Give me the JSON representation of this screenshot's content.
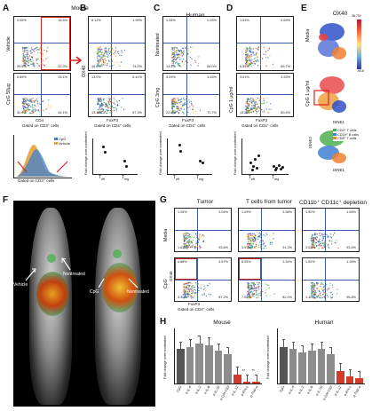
{
  "panels": {
    "A": "A",
    "B": "B",
    "C": "C",
    "D": "D",
    "E": "E",
    "F": "F",
    "G": "G",
    "H": "H"
  },
  "header": {
    "mouse": "Mouse",
    "human": "Human",
    "ox40": "OX40",
    "tumor": "Tumor",
    "t_cells_from_tumor": "T cells from tumor",
    "depletion": "CD11b⁺ CD11c⁺ depletion"
  },
  "rows": {
    "vehicle": "Vehicle",
    "cpg": "CpG 50µg",
    "nontreated": "Nontreated",
    "cpg_3mg": "CpG 3mg",
    "cpg_1ug": "CpG 1 µg/ml",
    "media": "Media",
    "cpg_g": "CpG"
  },
  "axes": {
    "ox40": "OX40",
    "cd4": "CD4",
    "foxp3": "FoxP3",
    "gated_cd3": "Gated on CD3⁺ cells",
    "gated_cd4": "Gated on CD4⁺ cells",
    "fold": "Fold change over nontreated",
    "tsne1": "tSNE1",
    "tsne2": "tSNE2",
    "teff": "T",
    "teff_sub": "eff",
    "treg": "T",
    "treg_sub": "reg"
  },
  "quadrants": {
    "A1": [
      "0.05%",
      "18.6%",
      "39.5%",
      "42.3%"
    ],
    "A2": [
      "0.89%",
      "33.1%",
      "32.6%",
      "44.1%"
    ],
    "B1": [
      "8.12%",
      "1.99%",
      "16.6%",
      "74.0%"
    ],
    "B2": [
      "13.0%",
      "6.41%",
      "13.1%",
      "67.3%"
    ],
    "C1": [
      "1.28%",
      "0.25%",
      "14.3%",
      "84.0%"
    ],
    "C2": [
      "3.29%",
      "3.15%",
      "22.8%",
      "70.7%"
    ],
    "D1": [
      "1.03%",
      "2.69%",
      "6.55%",
      "89.7%"
    ],
    "D2": [
      "3.01%",
      "3.33%",
      "13.2%",
      "80.4%"
    ],
    "G1": [
      "1.26%",
      "3.04%",
      "1.83%",
      "93.8%"
    ],
    "G2": [
      "1.29%",
      "3.36%",
      "3.97%",
      "91.3%"
    ],
    "G3": [
      "1.92%",
      "1.65%",
      "3.02%",
      "93.4%"
    ],
    "G4": [
      "4.88%",
      "4.57%",
      "3.30%",
      "87.2%"
    ],
    "G5": [
      "8.05%",
      "2.34%",
      "7.54%",
      "82.0%"
    ],
    "G6": [
      "1.52%",
      "1.26%",
      "1.40%",
      "95.8%"
    ]
  },
  "legend_a": {
    "cpg": "CpG",
    "vehicle": "Vehicle"
  },
  "legend_e": {
    "cd4": "CD4⁺ T cells",
    "cd19": "CD19⁺ B cells",
    "cd8": "CD8⁺ T cells"
  },
  "tsne_scale": {
    "max": "38,792",
    "mid": "13,923",
    "low": "9,847",
    "min": "-94.8"
  },
  "mouse_labels": {
    "vehicle": "Vehicle",
    "nontreated": "Nontreated",
    "cpg": "CpG"
  },
  "colors": {
    "blue_hist": "#3f7fd1",
    "orange_hist": "#e9a23b",
    "red_bar": "#d23a2a",
    "gray_bar": "#8c8c8c",
    "gate_line": "#3b5ba8"
  },
  "chart_data": [
    {
      "type": "bar",
      "title": "Mouse",
      "ylabel": "Fold change over nontreated",
      "ylim": [
        0,
        1.5
      ],
      "categories": [
        "CpG",
        "α-IL-4",
        "α-IL-2",
        "α-IL-6",
        "α-IL-10",
        "α-GM-CSF",
        "α-IL-12",
        "α-IFN-γ",
        "α-TNF-α"
      ],
      "values": [
        0.95,
        1.0,
        1.1,
        1.05,
        0.9,
        0.8,
        0.25,
        0.05,
        0.05
      ],
      "significance": [
        "",
        "",
        "",
        "",
        "",
        "",
        "",
        "**",
        "**"
      ]
    },
    {
      "type": "bar",
      "title": "Human",
      "ylabel": "Fold change over nontreated",
      "ylim": [
        0,
        1.5
      ],
      "categories": [
        "CpG",
        "α-IL-4",
        "α-IL-2",
        "α-IL-6",
        "α-IL-10",
        "α-GM-CSF",
        "α-IL-12",
        "α-IFN-γ",
        "α-TNF-α"
      ],
      "values": [
        1.0,
        0.95,
        0.85,
        0.9,
        0.95,
        0.8,
        0.35,
        0.2,
        0.15
      ],
      "significance": [
        "",
        "",
        "",
        "",
        "",
        "",
        "",
        "",
        ""
      ]
    }
  ]
}
